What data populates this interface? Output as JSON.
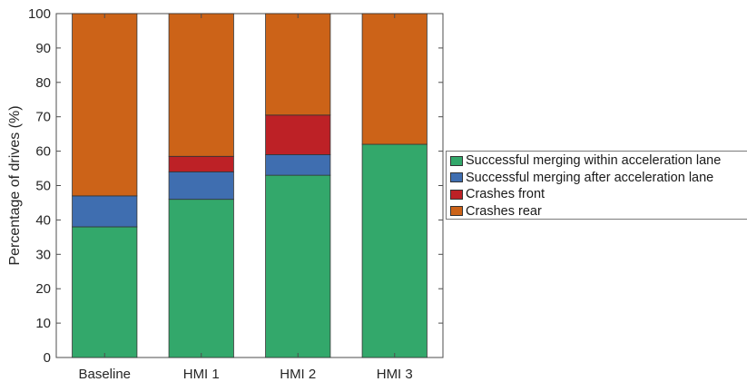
{
  "chart_data": {
    "type": "bar",
    "stacked": true,
    "categories": [
      "Baseline",
      "HMI 1",
      "HMI 2",
      "HMI 3"
    ],
    "series": [
      {
        "name": "Successful merging within acceleration lane",
        "color": "#33a86b",
        "values": [
          38,
          46,
          53,
          62
        ]
      },
      {
        "name": "Successful merging after acceleration lane",
        "color": "#3f6eb0",
        "values": [
          9,
          8,
          6,
          0
        ]
      },
      {
        "name": "Crashes front",
        "color": "#bd2126",
        "values": [
          0,
          4.5,
          11.5,
          0
        ]
      },
      {
        "name": "Crashes rear",
        "color": "#cc6318",
        "values": [
          53,
          41.5,
          29.5,
          38
        ]
      }
    ],
    "ylabel": "Percentage of drives (%)",
    "xlabel": "",
    "ylim": [
      0,
      100
    ],
    "yticks": [
      0,
      10,
      20,
      30,
      40,
      50,
      60,
      70,
      80,
      90,
      100
    ],
    "grid": false,
    "legend_position": "right"
  }
}
